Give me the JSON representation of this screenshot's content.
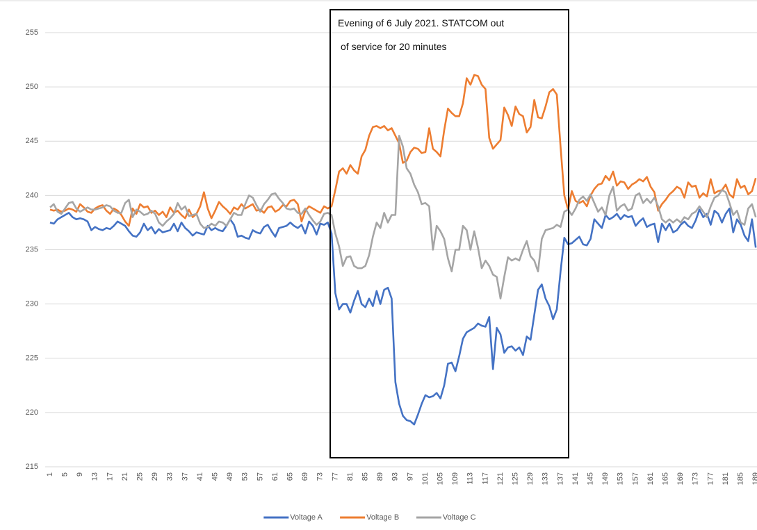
{
  "chart_data": {
    "type": "line",
    "annotation": [
      "Evening of 6 July 2021.  STATCOM out",
      "of service for 20 minutes"
    ],
    "categories": [
      1,
      null,
      null,
      null,
      5,
      null,
      null,
      null,
      9,
      null,
      null,
      null,
      13,
      null,
      null,
      null,
      17,
      null,
      null,
      null,
      21,
      null,
      null,
      null,
      25,
      null,
      null,
      null,
      29,
      null,
      null,
      null,
      33,
      null,
      null,
      null,
      37,
      null,
      null,
      null,
      41,
      null,
      null,
      null,
      45,
      null,
      null,
      null,
      49,
      null,
      null,
      null,
      53,
      null,
      null,
      null,
      57,
      null,
      null,
      null,
      61,
      null,
      null,
      null,
      65,
      null,
      null,
      null,
      69,
      null,
      null,
      null,
      73,
      null,
      null,
      null,
      77,
      null,
      null,
      null,
      81,
      null,
      null,
      null,
      85,
      null,
      null,
      null,
      89,
      null,
      null,
      null,
      93,
      null,
      null,
      null,
      97,
      null,
      null,
      null,
      101,
      null,
      null,
      null,
      105,
      null,
      null,
      null,
      109,
      null,
      null,
      null,
      113,
      null,
      null,
      null,
      117,
      null,
      null,
      null,
      121,
      null,
      null,
      null,
      125,
      null,
      null,
      null,
      129,
      null,
      null,
      null,
      133,
      null,
      null,
      null,
      137,
      null,
      null,
      null,
      141,
      null,
      null,
      null,
      145,
      null,
      null,
      null,
      149,
      null,
      null,
      null,
      153,
      null,
      null,
      null,
      157,
      null,
      null,
      null,
      161,
      null,
      null,
      null,
      165,
      null,
      null,
      null,
      169,
      null,
      null,
      null,
      173,
      null,
      null,
      null,
      177,
      null,
      null,
      null,
      181,
      null,
      null,
      null,
      185,
      null,
      null,
      null,
      189
    ],
    "ylim": [
      215,
      255
    ],
    "yticks": [
      215,
      220,
      225,
      230,
      235,
      240,
      245,
      250,
      255
    ],
    "grid": true,
    "legend": "bottom",
    "series": [
      {
        "name": "Voltage A",
        "color": "#4472c4",
        "values": [
          237.5,
          237.4,
          237.8,
          238,
          238.2,
          238.4,
          238,
          237.8,
          237.9,
          237.8,
          237.6,
          236.8,
          237.1,
          236.9,
          236.8,
          237,
          236.9,
          237.2,
          237.6,
          237.4,
          237.2,
          236.7,
          236.3,
          236.2,
          236.6,
          237.4,
          236.8,
          237.1,
          236.5,
          236.9,
          236.6,
          236.7,
          236.8,
          237.4,
          236.7,
          237.5,
          237,
          236.7,
          236.3,
          236.6,
          236.5,
          236.4,
          237.2,
          236.8,
          237,
          236.8,
          236.7,
          237.2,
          237.8,
          237.3,
          236.2,
          236.3,
          236.1,
          236,
          236.8,
          236.6,
          236.5,
          237.1,
          237.3,
          236.7,
          236.2,
          237,
          237.1,
          237.2,
          237.5,
          237.2,
          237,
          237.3,
          236.5,
          237.6,
          237.2,
          236.4,
          237.4,
          237.3,
          237.5,
          236.5,
          231,
          229.5,
          230,
          230,
          229.2,
          230.3,
          231.2,
          230,
          229.7,
          230.5,
          229.8,
          231.2,
          230,
          231.3,
          231.5,
          230.5,
          222.8,
          220.8,
          219.7,
          219.3,
          219.2,
          218.9,
          219.8,
          220.8,
          221.6,
          221.4,
          221.5,
          221.8,
          221.3,
          222.5,
          224.5,
          224.6,
          223.8,
          225.2,
          226.8,
          227.4,
          227.6,
          227.8,
          228.2,
          228,
          227.9,
          228.8,
          224,
          227.8,
          227.2,
          225.5,
          226,
          226.1,
          225.7,
          226,
          225.3,
          227,
          226.7,
          229,
          231.3,
          231.8,
          230.5,
          229.8,
          228.6,
          229.5,
          233,
          236.1,
          235.5,
          235.6,
          235.9,
          236.2,
          235.5,
          235.4,
          236,
          237.8,
          237.4,
          237,
          238.2,
          237.8,
          238,
          238.3,
          237.8,
          238.2,
          238,
          238.1,
          237.2,
          237.6,
          237.9,
          237.1,
          237.3,
          237.4,
          235.7,
          237.4,
          236.8,
          237.4,
          236.6,
          236.8,
          237.3,
          237.6,
          237.2,
          237,
          237.7,
          238.7,
          238,
          238.3,
          237.3,
          238.6,
          238.3,
          237.5,
          238.3,
          238.8,
          236.6,
          237.8,
          237.3,
          236.3,
          235.8,
          237.8,
          235.2
        ]
      },
      {
        "name": "Voltage B",
        "color": "#ed7d31",
        "values": [
          238.7,
          238.6,
          238.7,
          238.5,
          238.6,
          238.8,
          238.7,
          238.5,
          239.2,
          238.9,
          238.5,
          238.4,
          238.8,
          239,
          239.1,
          238.6,
          238.3,
          238.8,
          238.6,
          238.2,
          237.6,
          237.2,
          238.8,
          238.3,
          239.2,
          238.9,
          239,
          238.4,
          238.6,
          238.2,
          238.5,
          238,
          238.9,
          238.4,
          238.6,
          238.2,
          237.9,
          238.7,
          238,
          238.3,
          239,
          240.3,
          238.8,
          237.9,
          238.6,
          239.4,
          239,
          238.7,
          238.3,
          238.9,
          238.7,
          239.2,
          238.8,
          239,
          239.2,
          238.6,
          238.7,
          238.4,
          238.9,
          239,
          238.5,
          238.7,
          239.1,
          239,
          239.5,
          239.6,
          239.2,
          237.6,
          238.6,
          239,
          238.8,
          238.6,
          238.4,
          239,
          238.8,
          239,
          240.5,
          242.2,
          242.5,
          242,
          242.8,
          242.3,
          242,
          243.6,
          244.2,
          245.5,
          246.3,
          246.4,
          246.2,
          246.4,
          246,
          246.2,
          245.5,
          244.8,
          243,
          243.2,
          244,
          244.4,
          244.3,
          243.9,
          244,
          246.2,
          244.3,
          244,
          243.6,
          246,
          248,
          247.6,
          247.3,
          247.3,
          248.5,
          250.8,
          250.2,
          251.1,
          251,
          250.2,
          249.8,
          245.3,
          244.3,
          244.7,
          245.1,
          248.1,
          247.4,
          246.4,
          248.2,
          247.5,
          247.3,
          245.8,
          246.3,
          248.8,
          247.2,
          247.1,
          248.2,
          249.5,
          249.8,
          249.3,
          244.5,
          240,
          238.7,
          240.4,
          239.5,
          239.3,
          239.5,
          239,
          240,
          240.6,
          241,
          241.1,
          241.8,
          241.4,
          242.2,
          240.9,
          241.3,
          241.2,
          240.6,
          241,
          241.2,
          241.5,
          241.3,
          241.7,
          240.8,
          240.3,
          238.6,
          239.2,
          239.6,
          240.1,
          240.4,
          240.8,
          240.6,
          239.8,
          241.2,
          240.8,
          240.9,
          239.8,
          240.2,
          239.9,
          241.5,
          240.2,
          240.4,
          240.5,
          241,
          240.1,
          239.8,
          241.5,
          240.7,
          240.9,
          240.1,
          240.4,
          241.6
        ]
      },
      {
        "name": "Voltage C",
        "color": "#a5a5a5",
        "values": [
          238.9,
          239.2,
          238.5,
          238.3,
          238.8,
          239.3,
          239.4,
          238.8,
          238.5,
          238.7,
          238.9,
          238.7,
          238.7,
          238.8,
          238.9,
          239.1,
          239,
          238.6,
          238.4,
          238.4,
          239.3,
          239.6,
          238,
          238.7,
          238.5,
          238.2,
          238.3,
          238.6,
          238.3,
          237.5,
          237.2,
          237.6,
          237.9,
          238.3,
          239.3,
          238.7,
          239,
          238.1,
          238.2,
          238.3,
          237.4,
          237,
          237.1,
          237.4,
          237.2,
          237.6,
          237.5,
          237.2,
          237.8,
          238.4,
          238.2,
          238.2,
          239.2,
          240,
          239.8,
          239.1,
          238.5,
          239.2,
          239.6,
          240.1,
          240.2,
          239.7,
          239.3,
          238.8,
          238.7,
          238.8,
          238.4,
          238.3,
          238.8,
          238.2,
          237.7,
          237.3,
          237.6,
          238.3,
          238.4,
          238.2,
          236.5,
          235.3,
          233.5,
          234.3,
          234.4,
          233.5,
          233.3,
          233.3,
          233.5,
          234.5,
          236.2,
          237.5,
          237,
          238.4,
          237.5,
          238.2,
          238.2,
          245.5,
          244.5,
          242.5,
          242,
          241,
          240.3,
          239.2,
          239.3,
          239,
          235,
          237.2,
          236.7,
          236,
          234.2,
          233,
          235,
          235,
          237.2,
          236.8,
          235,
          236.7,
          235.2,
          233.3,
          234,
          233.5,
          232.7,
          232.5,
          230.5,
          232.5,
          234.3,
          234,
          234.2,
          234,
          235,
          235.8,
          234.4,
          234,
          233,
          236,
          236.8,
          236.9,
          237,
          237.3,
          237.1,
          238.5,
          238.7,
          238.2,
          238.8,
          239.6,
          239.9,
          239.5,
          240.1,
          239.3,
          238.5,
          238.9,
          238.2,
          240,
          240.8,
          238.6,
          239,
          239.2,
          238.6,
          238.8,
          240,
          240.2,
          239.3,
          239.7,
          239.3,
          239.8,
          239,
          237.8,
          237.5,
          237.8,
          237.5,
          237.8,
          237.5,
          238,
          237.8,
          238.3,
          238.5,
          239,
          238.5,
          238,
          239,
          239.8,
          240,
          240.5,
          240.3,
          239.3,
          238.2,
          238.6,
          237.5,
          237.3,
          238.8,
          239.2,
          238
        ]
      }
    ]
  }
}
